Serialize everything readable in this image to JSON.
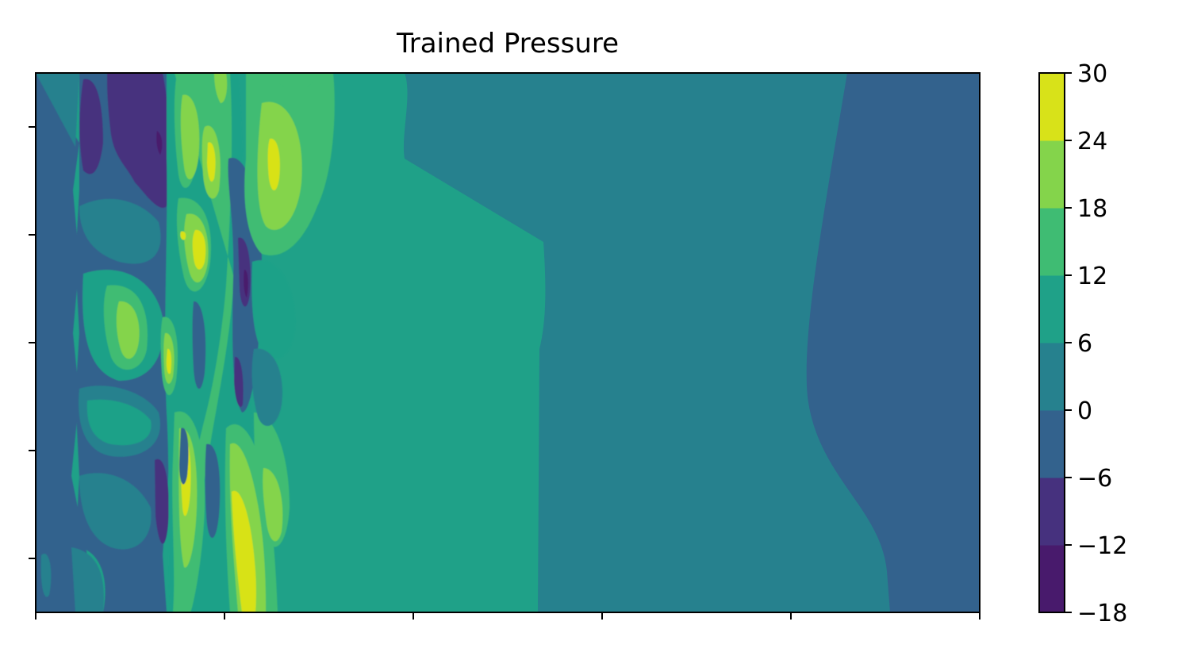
{
  "chart_data": {
    "type": "heatmap",
    "title": "Trained Pressure",
    "xlabel": "",
    "ylabel": "",
    "x_tick_count": 6,
    "y_tick_count": 5,
    "colorbar": {
      "levels": [
        -18,
        -12,
        -6,
        0,
        6,
        12,
        18,
        24,
        30
      ],
      "tick_labels": [
        "−18",
        "−12",
        "−6",
        "0",
        "6",
        "12",
        "18",
        "24",
        "30"
      ],
      "colors": [
        "#481a6c",
        "#46317e",
        "#33628d",
        "#26818e",
        "#1fa188",
        "#3fbc73",
        "#84d44b",
        "#d8e219"
      ]
    },
    "regions_described": [
      {
        "band": "left oscillating zone",
        "range": [
          -18,
          30
        ]
      },
      {
        "band": "central plateau",
        "range": [
          6,
          12
        ]
      },
      {
        "band": "middle-right plateau",
        "range": [
          0,
          6
        ]
      },
      {
        "band": "right edge",
        "range": [
          -6,
          0
        ]
      }
    ]
  }
}
